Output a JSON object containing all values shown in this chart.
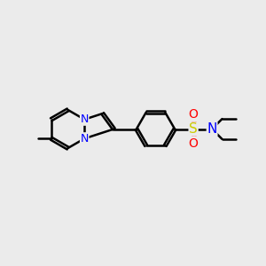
{
  "bg_color": "#ebebeb",
  "bond_color": "#000000",
  "nitrogen_color": "#0000ff",
  "sulfur_color": "#cccc00",
  "oxygen_color": "#ff0000",
  "line_width": 1.8,
  "figsize": [
    3.0,
    3.0
  ],
  "dpi": 100,
  "xlim": [
    0,
    10
  ],
  "ylim": [
    0,
    10
  ]
}
